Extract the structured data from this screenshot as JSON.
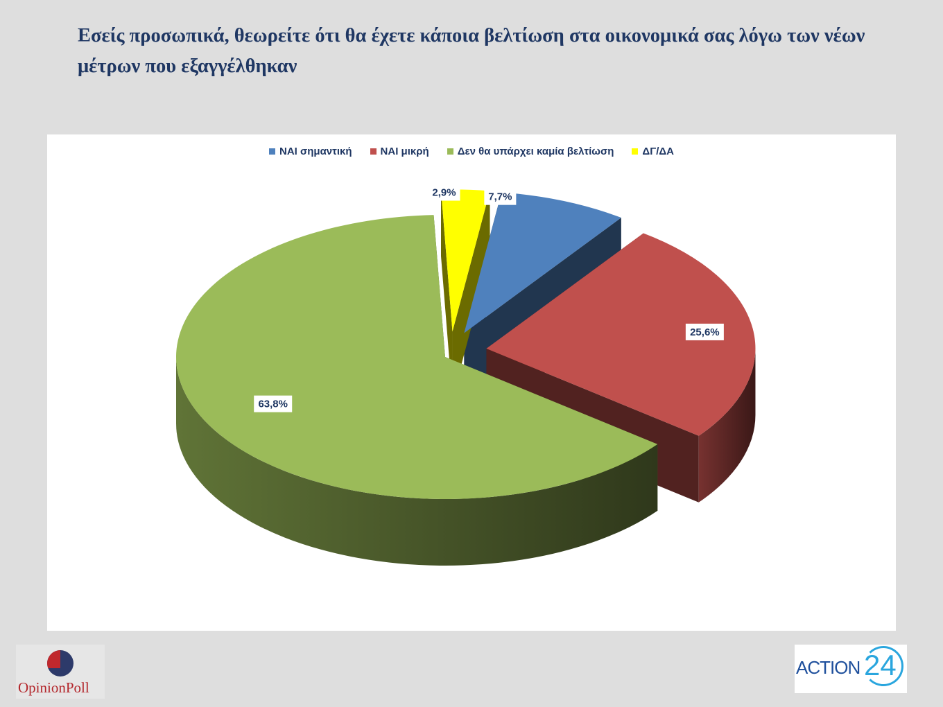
{
  "title": "Εσείς προσωπικά, θεωρείτε ότι θα έχετε κάποια βελτίωση στα οικονομικά σας λόγω των νέων μέτρων που εξαγγέλθηκαν",
  "chart_data": {
    "type": "pie",
    "style": "3d-exploded",
    "title": "Εσείς προσωπικά, θεωρείτε ότι θα έχετε κάποια βελτίωση στα οικονομικά σας λόγω των νέων μέτρων που εξαγγέλθηκαν",
    "legend_position": "top",
    "categories": [
      "ΝΑΙ σημαντική",
      "ΝΑΙ μικρή",
      "Δεν θα υπάρχει καμία βελτίωση",
      "ΔΓ/ΔΑ"
    ],
    "values": [
      7.7,
      25.6,
      63.8,
      2.9
    ],
    "labels": [
      "7,7%",
      "25,6%",
      "63,8%",
      "2,9%"
    ],
    "colors": [
      "#4f81bd",
      "#c0504d",
      "#9bbb59",
      "#ffff00"
    ]
  },
  "logos": {
    "left": "OpinionPoll",
    "right_text": "ACTION",
    "right_number": "24"
  }
}
